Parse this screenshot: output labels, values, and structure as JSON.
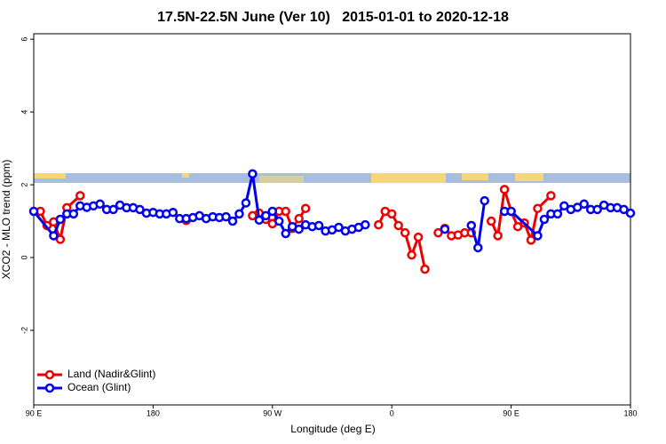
{
  "chart_data": {
    "type": "line",
    "title": "17.5N-22.5N June (Ver 10)   2015-01-01 to 2020-12-18",
    "x_label": "Longitude (deg E)",
    "y_label": "XCO2 - MLO trend (ppm)",
    "xlim": [
      90,
      540
    ],
    "ylim": [
      -4.05,
      6.15
    ],
    "xticks": [
      {
        "value": 90,
        "label": "90 E"
      },
      {
        "value": 180,
        "label": "180"
      },
      {
        "value": 270,
        "label": "90 W"
      },
      {
        "value": 360,
        "label": "0"
      },
      {
        "value": 450,
        "label": "90 E"
      },
      {
        "value": 540,
        "label": "180"
      }
    ],
    "yticks": [
      -2,
      0,
      2,
      4,
      6
    ],
    "legend": "bottom-left",
    "series": [
      {
        "name": "Land (Nadir&Glint)",
        "color": "#ee0000",
        "x": [
          95,
          100,
          105,
          110,
          115,
          125,
          130,
          205,
          210,
          255,
          260,
          265,
          270,
          275,
          280,
          285,
          290,
          295,
          300,
          350,
          355,
          360,
          365,
          370,
          375,
          380,
          385,
          390,
          395,
          400,
          405,
          410,
          415,
          420,
          425,
          435,
          440,
          445,
          450,
          455,
          460,
          465,
          470,
          480
        ],
        "values": [
          1.27,
          0.88,
          0.98,
          0.5,
          1.37,
          1.7,
          null,
          1.02,
          null,
          1.15,
          1.22,
          1.05,
          0.93,
          1.27,
          1.27,
          0.8,
          1.07,
          1.35,
          null,
          0.9,
          1.27,
          1.2,
          0.88,
          0.68,
          0.07,
          0.56,
          -0.32,
          null,
          0.68,
          0.8,
          0.6,
          0.62,
          0.68,
          0.68,
          null,
          1.0,
          0.6,
          1.87,
          1.27,
          0.85,
          0.95,
          0.48,
          1.35,
          1.7
        ]
      },
      {
        "name": "Ocean (Glint)",
        "color": "#0000ee",
        "x": [
          90,
          105,
          110,
          115,
          120,
          125,
          130,
          135,
          140,
          145,
          150,
          155,
          160,
          165,
          170,
          175,
          180,
          185,
          190,
          195,
          200,
          205,
          210,
          215,
          220,
          225,
          230,
          235,
          240,
          245,
          250,
          255,
          260,
          265,
          270,
          275,
          280,
          285,
          290,
          295,
          300,
          305,
          310,
          315,
          320,
          325,
          330,
          335,
          340,
          345,
          400,
          410,
          420,
          425,
          430,
          435,
          445,
          450,
          470,
          475,
          480,
          485,
          490,
          495,
          500,
          505,
          510,
          515,
          520,
          525,
          530,
          535,
          540
        ],
        "values": [
          1.27,
          0.6,
          1.05,
          1.2,
          1.2,
          1.42,
          1.38,
          1.42,
          1.47,
          1.32,
          1.32,
          1.44,
          1.37,
          1.37,
          1.32,
          1.22,
          1.24,
          1.2,
          1.2,
          1.24,
          1.07,
          1.07,
          1.1,
          1.15,
          1.07,
          1.12,
          1.1,
          1.12,
          1.0,
          1.2,
          1.5,
          2.3,
          1.03,
          1.15,
          1.27,
          1.0,
          0.66,
          0.85,
          0.78,
          0.9,
          0.85,
          0.88,
          0.73,
          0.76,
          0.83,
          0.73,
          0.78,
          0.83,
          0.9,
          null,
          0.78,
          null,
          0.88,
          0.27,
          1.56,
          null,
          1.27,
          1.27,
          0.6,
          1.05,
          1.2,
          1.2,
          1.42,
          1.32,
          1.38,
          1.47,
          1.32,
          1.32,
          1.44,
          1.37,
          1.37,
          1.32,
          1.22
        ]
      }
    ]
  }
}
